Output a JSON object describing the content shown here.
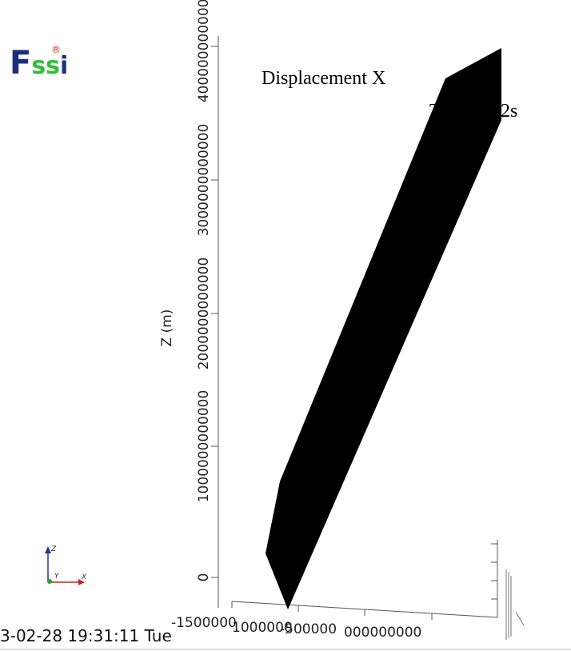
{
  "logo": {
    "parts": [
      "F",
      "ss",
      "i"
    ],
    "mark": "®"
  },
  "title": "Displacement X",
  "time_label": {
    "start": "T",
    "end": ".2s"
  },
  "z_axis": {
    "label": "Z (m)",
    "ticks": [
      "0",
      "1000000000000",
      "2000000000000",
      "3000000000000",
      "4000000000000"
    ]
  },
  "x_axis": {
    "ticks": [
      "-1500000",
      "1000000",
      "-500000",
      "000000000"
    ]
  },
  "timestamp": "3-02-28 19:31:11 Tue",
  "triad": {
    "z": "Z",
    "y": "Y",
    "x": "X"
  }
}
